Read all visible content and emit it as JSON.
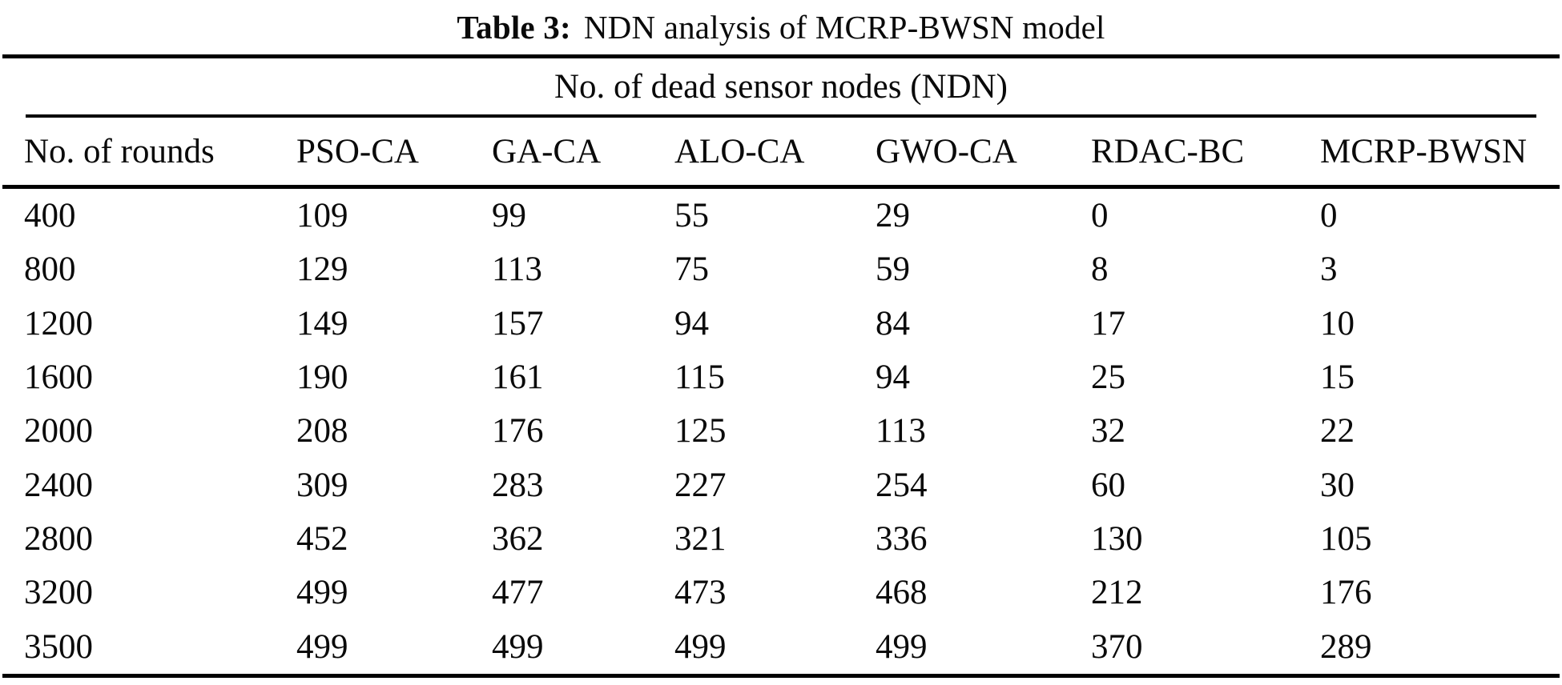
{
  "table": {
    "caption_label": "Table 3:",
    "caption_text": "NDN analysis of MCRP-BWSN model",
    "group_header": "No. of dead sensor nodes (NDN)",
    "columns": [
      "No. of rounds",
      "PSO-CA",
      "GA-CA",
      "ALO-CA",
      "GWO-CA",
      "RDAC-BC",
      "MCRP-BWSN"
    ],
    "rows": [
      [
        "400",
        "109",
        "99",
        "55",
        "29",
        "0",
        "0"
      ],
      [
        "800",
        "129",
        "113",
        "75",
        "59",
        "8",
        "3"
      ],
      [
        "1200",
        "149",
        "157",
        "94",
        "84",
        "17",
        "10"
      ],
      [
        "1600",
        "190",
        "161",
        "115",
        "94",
        "25",
        "15"
      ],
      [
        "2000",
        "208",
        "176",
        "125",
        "113",
        "32",
        "22"
      ],
      [
        "2400",
        "309",
        "283",
        "227",
        "254",
        "60",
        "30"
      ],
      [
        "2800",
        "452",
        "362",
        "321",
        "336",
        "130",
        "105"
      ],
      [
        "3200",
        "499",
        "477",
        "473",
        "468",
        "212",
        "176"
      ],
      [
        "3500",
        "499",
        "499",
        "499",
        "499",
        "370",
        "289"
      ]
    ],
    "colors": {
      "text": "#0a0a0a",
      "rule": "#000000",
      "background": "#ffffff"
    }
  },
  "chart_data": {
    "type": "table",
    "title": "Table 3: NDN analysis of MCRP-BWSN model",
    "group_header": "No. of dead sensor nodes (NDN)",
    "x": [
      400,
      800,
      1200,
      1600,
      2000,
      2400,
      2800,
      3200,
      3500
    ],
    "xlabel": "No. of rounds",
    "ylabel": "No. of dead sensor nodes (NDN)",
    "series": [
      {
        "name": "PSO-CA",
        "values": [
          109,
          129,
          149,
          190,
          208,
          309,
          452,
          499,
          499
        ]
      },
      {
        "name": "GA-CA",
        "values": [
          99,
          113,
          157,
          161,
          176,
          283,
          362,
          477,
          499
        ]
      },
      {
        "name": "ALO-CA",
        "values": [
          55,
          75,
          94,
          115,
          125,
          227,
          321,
          473,
          499
        ]
      },
      {
        "name": "GWO-CA",
        "values": [
          29,
          59,
          84,
          94,
          113,
          254,
          336,
          468,
          499
        ]
      },
      {
        "name": "RDAC-BC",
        "values": [
          0,
          8,
          17,
          25,
          32,
          60,
          130,
          212,
          370
        ]
      },
      {
        "name": "MCRP-BWSN",
        "values": [
          0,
          3,
          10,
          15,
          22,
          30,
          105,
          176,
          289
        ]
      }
    ]
  }
}
